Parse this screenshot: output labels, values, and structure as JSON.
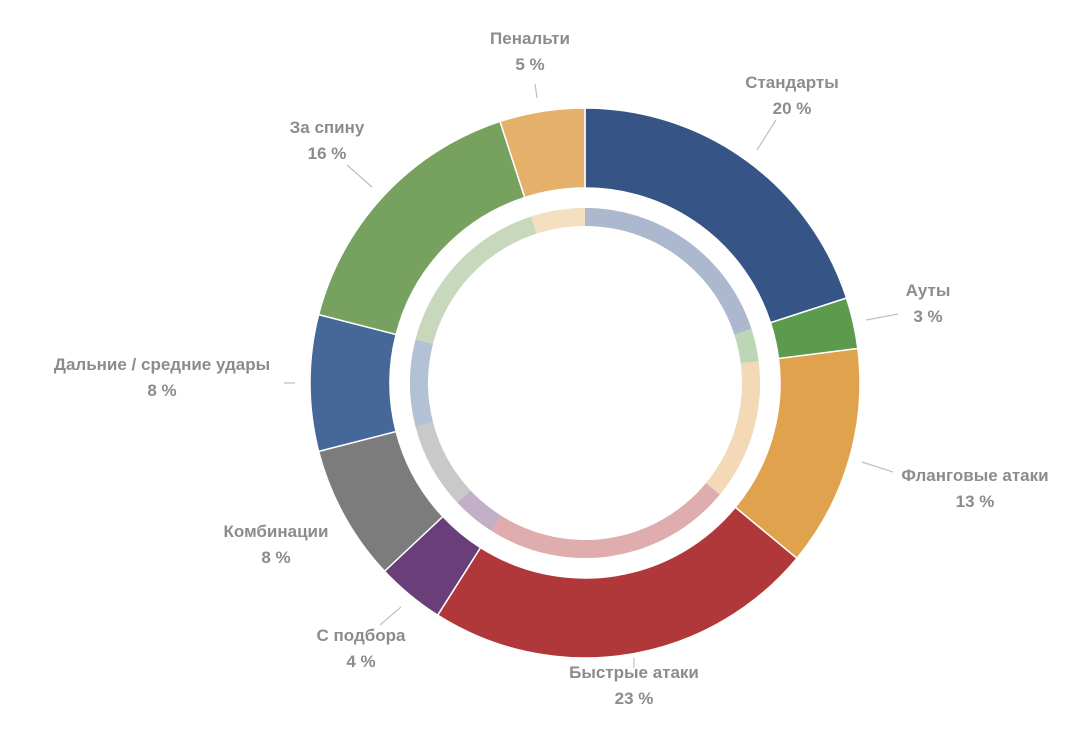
{
  "chart_data": {
    "type": "pie",
    "donut": true,
    "title": "",
    "slices": [
      {
        "name": "Стандарты",
        "pct_label": "20 %",
        "value": 20,
        "color": "#365486"
      },
      {
        "name": "Ауты",
        "pct_label": "3 %",
        "value": 3,
        "color": "#5c9a4e"
      },
      {
        "name": "Фланговые атаки",
        "pct_label": "13 %",
        "value": 13,
        "color": "#e1a24e"
      },
      {
        "name": "Быстрые атаки",
        "pct_label": "23 %",
        "value": 23,
        "color": "#b0383a"
      },
      {
        "name": "С подбора",
        "pct_label": "4 %",
        "value": 4,
        "color": "#6a3f79"
      },
      {
        "name": "Комбинации",
        "pct_label": "8 %",
        "value": 8,
        "color": "#7c7c7c"
      },
      {
        "name": "Дальние / средние удары",
        "pct_label": "8 %",
        "value": 8,
        "color": "#466898"
      },
      {
        "name": "За спину",
        "pct_label": "16 %",
        "value": 16,
        "color": "#77a15f"
      },
      {
        "name": "Пенальти",
        "pct_label": "5 %",
        "value": 5,
        "color": "#e4b06a"
      }
    ]
  }
}
